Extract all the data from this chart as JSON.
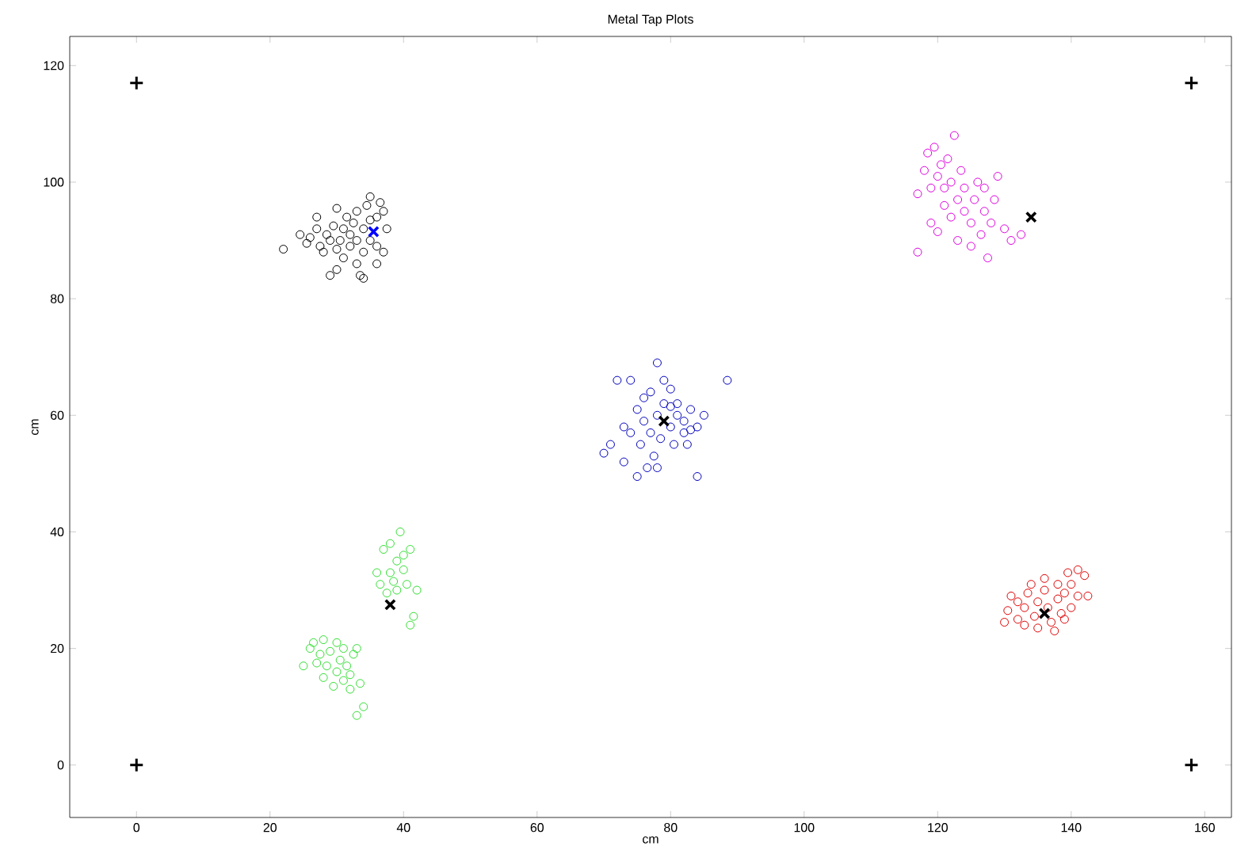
{
  "chart_data": {
    "type": "scatter",
    "title": "Metal Tap Plots",
    "xlabel": "cm",
    "ylabel": "cm",
    "xlim": [
      -10,
      164
    ],
    "ylim": [
      -9,
      125
    ],
    "xticks": [
      0,
      20,
      40,
      60,
      80,
      100,
      120,
      140,
      160
    ],
    "yticks": [
      0,
      20,
      40,
      60,
      80,
      100,
      120
    ],
    "series": [
      {
        "color": "#000000",
        "marker": "circle",
        "x": [
          22,
          24.5,
          25.5,
          26,
          27,
          27,
          27.5,
          28,
          28.5,
          29,
          29,
          29.5,
          30,
          30,
          30,
          30.5,
          31,
          31,
          31.5,
          32,
          32,
          32.5,
          33,
          33,
          33,
          33.5,
          34,
          34,
          34,
          34.5,
          35,
          35,
          35,
          36,
          36,
          36,
          36.5,
          37,
          37,
          37.5
        ],
        "values": [
          88.5,
          91,
          89.5,
          90.5,
          92,
          94,
          89,
          88,
          91,
          84,
          90,
          92.5,
          85,
          88.5,
          95.5,
          90,
          92,
          87,
          94,
          89,
          91,
          93,
          86,
          90,
          95,
          84,
          83.5,
          88,
          92,
          96,
          90,
          93.5,
          97.5,
          86,
          89,
          94,
          96.5,
          88,
          95,
          92
        ]
      },
      {
        "color": "#dd00dd",
        "marker": "circle",
        "x": [
          117,
          117,
          118,
          118.5,
          119,
          119,
          119.5,
          120,
          120,
          120.5,
          121,
          121,
          121.5,
          122,
          122,
          122.5,
          123,
          123,
          123.5,
          124,
          124,
          125,
          125,
          125.5,
          126,
          126.5,
          127,
          127,
          127.5,
          128,
          128.5,
          129,
          130,
          131,
          132.5
        ],
        "values": [
          98,
          88,
          102,
          105,
          93,
          99,
          106,
          91.5,
          101,
          103,
          96,
          99,
          104,
          94,
          100,
          108,
          90,
          97,
          102,
          95,
          99,
          89,
          93,
          97,
          100,
          91,
          95,
          99,
          87,
          93,
          97,
          101,
          92,
          90,
          91
        ]
      },
      {
        "color": "#0000bb",
        "marker": "circle",
        "x": [
          70,
          71,
          72,
          73,
          73,
          74,
          74,
          75,
          75,
          75.5,
          76,
          76,
          76.5,
          77,
          77,
          77.5,
          78,
          78,
          78.5,
          79,
          79,
          80,
          80,
          80.5,
          81,
          81,
          82,
          82,
          82.5,
          83,
          83,
          84,
          84,
          85,
          88.5,
          78,
          80
        ],
        "values": [
          53.5,
          55,
          66,
          58,
          52,
          66,
          57,
          49.5,
          61,
          55,
          59,
          63,
          51,
          57,
          64,
          53,
          69,
          60,
          56,
          62,
          66,
          58,
          64.5,
          55,
          60,
          62,
          57,
          59,
          55,
          61,
          57.5,
          49.5,
          58,
          60,
          66,
          51,
          61.5
        ]
      },
      {
        "color": "#33dd33",
        "marker": "circle",
        "x": [
          36,
          36.5,
          37,
          37.5,
          38,
          38,
          38.5,
          39,
          39,
          39.5,
          40,
          40,
          40.5,
          41,
          41,
          41.5,
          42,
          25,
          26,
          26.5,
          27,
          27.5,
          28,
          28,
          28.5,
          29,
          29.5,
          30,
          30,
          30.5,
          31,
          31,
          31.5,
          32,
          32,
          32.5,
          33,
          33,
          34,
          33.5
        ],
        "values": [
          33,
          31,
          37,
          29.5,
          33,
          38,
          31.5,
          35,
          30,
          40,
          33.5,
          36,
          31,
          37,
          24,
          25.5,
          30,
          17,
          20,
          21,
          17.5,
          19,
          15,
          21.5,
          17,
          19.5,
          13.5,
          16,
          21,
          18,
          14.5,
          20,
          17,
          13,
          15.5,
          19,
          20,
          8.5,
          10,
          14
        ]
      },
      {
        "color": "#dd0000",
        "marker": "circle",
        "x": [
          130,
          130.5,
          131,
          132,
          132,
          133,
          133,
          133.5,
          134,
          134.5,
          135,
          135,
          136,
          136,
          136.5,
          137,
          137.5,
          138,
          138,
          138.5,
          139,
          139.5,
          140,
          140,
          141,
          141,
          142,
          142.5,
          139
        ],
        "values": [
          24.5,
          26.5,
          29,
          25,
          28,
          24,
          27,
          29.5,
          31,
          25.5,
          28,
          23.5,
          30,
          32,
          27,
          24.5,
          23,
          28.5,
          31,
          26,
          29.5,
          33,
          27,
          31,
          29,
          33.5,
          32.5,
          29,
          25
        ]
      },
      {
        "color": "#000000",
        "marker": "cross",
        "x": [
          79,
          134,
          38,
          136
        ],
        "values": [
          59,
          94,
          27.5,
          26
        ]
      },
      {
        "color": "#0000ff",
        "marker": "cross",
        "x": [
          35.5
        ],
        "values": [
          91.5
        ]
      },
      {
        "color": "#000000",
        "marker": "plus",
        "x": [
          0,
          0,
          158,
          158
        ],
        "values": [
          117,
          0,
          0,
          117
        ]
      }
    ]
  }
}
